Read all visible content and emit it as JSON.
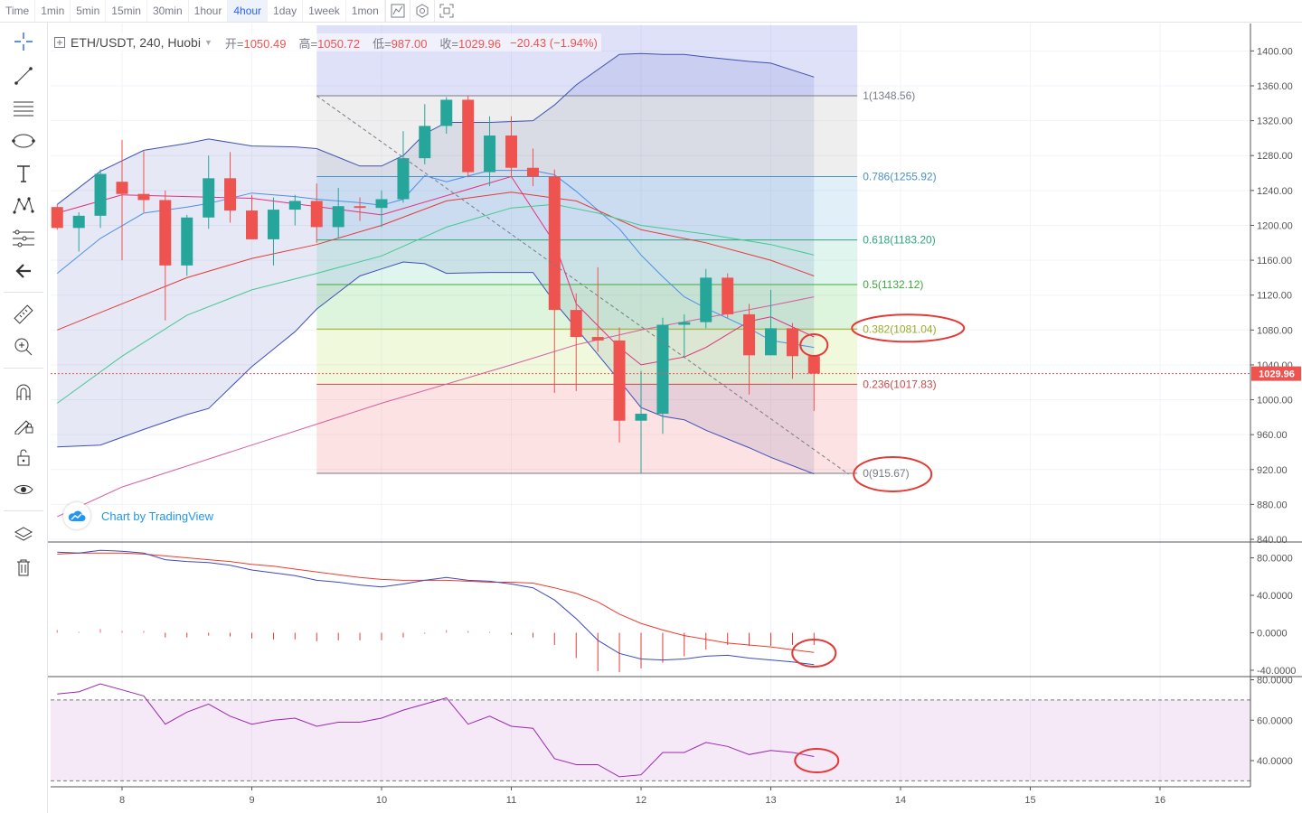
{
  "toolbar": {
    "timeframes": [
      "Time",
      "1min",
      "5min",
      "15min",
      "30min",
      "1hour",
      "4hour",
      "1day",
      "1week",
      "1mon"
    ],
    "active": "4hour",
    "icons": [
      "indicator-icon",
      "settings-icon",
      "screenshot-icon"
    ]
  },
  "left_tools": [
    "crosshair-icon",
    "trend-line-icon",
    "horizontal-lines-icon",
    "ellipse-icon",
    "text-icon",
    "pattern-icon",
    "fib-tools-icon",
    "back-arrow-icon",
    "ruler-icon",
    "zoom-in-icon",
    "magnet-icon",
    "lock-drawing-icon",
    "unlock-icon",
    "eye-icon",
    "layers-icon",
    "trash-icon"
  ],
  "legend": {
    "symbol": "ETH/USDT, 240, Huobi",
    "open_label": "开=",
    "open": "1050.49",
    "high_label": "高=",
    "high": "1050.72",
    "low_label": "低=",
    "low": "987.00",
    "close_label": "收=",
    "close": "1029.96",
    "change": "−20.43 (−1.94%)"
  },
  "watermark": "Chart by TradingView",
  "colors": {
    "up": "#26a69a",
    "down": "#ef5350",
    "bb_fill": "#3f51b5",
    "annotation": "#e53935"
  },
  "chart_data": {
    "type": "candlestick",
    "x_axis": {
      "ticks": [
        "8",
        "9",
        "10",
        "11",
        "12",
        "13",
        "14",
        "15",
        "16"
      ],
      "tick_positions": [
        8,
        9,
        10,
        11,
        12,
        13,
        14,
        15,
        16
      ]
    },
    "price_axis": {
      "ticks": [
        "840.00",
        "880.00",
        "920.00",
        "960.00",
        "1000.00",
        "1040.00",
        "1080.00",
        "1120.00",
        "1160.00",
        "1200.00",
        "1240.00",
        "1280.00",
        "1320.00",
        "1360.00",
        "1400.00"
      ],
      "range": [
        840,
        1420
      ]
    },
    "last_price": "1029.96",
    "candles": [
      {
        "t": 7.5,
        "o": 1221,
        "h": 1224,
        "l": 1195,
        "c": 1197
      },
      {
        "t": 7.667,
        "o": 1197,
        "h": 1215,
        "l": 1170,
        "c": 1211
      },
      {
        "t": 7.833,
        "o": 1211,
        "h": 1264,
        "l": 1197,
        "c": 1259
      },
      {
        "t": 8.0,
        "o": 1250,
        "h": 1298,
        "l": 1160,
        "c": 1236
      },
      {
        "t": 8.167,
        "o": 1236,
        "h": 1285,
        "l": 1215,
        "c": 1229
      },
      {
        "t": 8.333,
        "o": 1229,
        "h": 1240,
        "l": 1091,
        "c": 1154
      },
      {
        "t": 8.5,
        "o": 1154,
        "h": 1212,
        "l": 1142,
        "c": 1209
      },
      {
        "t": 8.667,
        "o": 1209,
        "h": 1280,
        "l": 1196,
        "c": 1254
      },
      {
        "t": 8.833,
        "o": 1254,
        "h": 1284,
        "l": 1203,
        "c": 1217
      },
      {
        "t": 9.0,
        "o": 1217,
        "h": 1235,
        "l": 1186,
        "c": 1184
      },
      {
        "t": 9.167,
        "o": 1184,
        "h": 1232,
        "l": 1154,
        "c": 1218
      },
      {
        "t": 9.333,
        "o": 1218,
        "h": 1235,
        "l": 1200,
        "c": 1228
      },
      {
        "t": 9.5,
        "o": 1228,
        "h": 1248,
        "l": 1180,
        "c": 1198
      },
      {
        "t": 9.667,
        "o": 1198,
        "h": 1243,
        "l": 1185,
        "c": 1222
      },
      {
        "t": 9.833,
        "o": 1222,
        "h": 1232,
        "l": 1205,
        "c": 1220
      },
      {
        "t": 10.0,
        "o": 1220,
        "h": 1240,
        "l": 1198,
        "c": 1230
      },
      {
        "t": 10.167,
        "o": 1230,
        "h": 1308,
        "l": 1226,
        "c": 1277
      },
      {
        "t": 10.333,
        "o": 1277,
        "h": 1339,
        "l": 1270,
        "c": 1314
      },
      {
        "t": 10.5,
        "o": 1314,
        "h": 1347,
        "l": 1305,
        "c": 1344
      },
      {
        "t": 10.667,
        "o": 1344,
        "h": 1349,
        "l": 1255,
        "c": 1261
      },
      {
        "t": 10.833,
        "o": 1261,
        "h": 1325,
        "l": 1245,
        "c": 1303
      },
      {
        "t": 11.0,
        "o": 1303,
        "h": 1325,
        "l": 1255,
        "c": 1266
      },
      {
        "t": 11.167,
        "o": 1266,
        "h": 1288,
        "l": 1245,
        "c": 1256
      },
      {
        "t": 11.333,
        "o": 1256,
        "h": 1264,
        "l": 1008,
        "c": 1103
      },
      {
        "t": 11.5,
        "o": 1103,
        "h": 1122,
        "l": 1010,
        "c": 1072
      },
      {
        "t": 11.667,
        "o": 1072,
        "h": 1152,
        "l": 1055,
        "c": 1068
      },
      {
        "t": 11.833,
        "o": 1068,
        "h": 1083,
        "l": 951,
        "c": 976
      },
      {
        "t": 12.0,
        "o": 976,
        "h": 1033,
        "l": 916,
        "c": 984
      },
      {
        "t": 12.167,
        "o": 984,
        "h": 1094,
        "l": 961,
        "c": 1086
      },
      {
        "t": 12.333,
        "o": 1086,
        "h": 1098,
        "l": 1049,
        "c": 1089
      },
      {
        "t": 12.5,
        "o": 1089,
        "h": 1150,
        "l": 1082,
        "c": 1140
      },
      {
        "t": 12.667,
        "o": 1140,
        "h": 1145,
        "l": 1094,
        "c": 1098
      },
      {
        "t": 12.833,
        "o": 1098,
        "h": 1110,
        "l": 1006,
        "c": 1051
      },
      {
        "t": 13.0,
        "o": 1051,
        "h": 1126,
        "l": 1051,
        "c": 1082
      },
      {
        "t": 13.167,
        "o": 1082,
        "h": 1088,
        "l": 1024,
        "c": 1050
      },
      {
        "t": 13.333,
        "o": 1050,
        "h": 1051,
        "l": 987,
        "c": 1030
      }
    ],
    "bollinger": {
      "t": [
        7.5,
        7.833,
        8.167,
        8.5,
        8.667,
        9.0,
        9.333,
        9.5,
        9.833,
        10.0,
        10.167,
        10.333,
        10.5,
        10.833,
        11.167,
        11.333,
        11.5,
        11.833,
        12.0,
        12.167,
        12.333,
        12.5,
        12.833,
        13.0,
        13.333
      ],
      "upper": [
        1224,
        1262,
        1286,
        1294,
        1299,
        1291,
        1290,
        1288,
        1268,
        1268,
        1280,
        1305,
        1318,
        1318,
        1320,
        1338,
        1361,
        1396,
        1397,
        1396,
        1396,
        1393,
        1388,
        1386,
        1370
      ],
      "lower": [
        946,
        948,
        966,
        983,
        990,
        1038,
        1078,
        1104,
        1142,
        1150,
        1158,
        1156,
        1145,
        1146,
        1146,
        1112,
        1082,
        1022,
        991,
        981,
        977,
        965,
        945,
        934,
        915
      ],
      "middle": [
        1145,
        1185,
        1214,
        1221,
        1225,
        1237,
        1233,
        1230,
        1226,
        1223,
        1230,
        1257,
        1250,
        1263,
        1263,
        1258,
        1239,
        1196,
        1166,
        1141,
        1118,
        1105,
        1082,
        1068,
        1060
      ]
    },
    "moving_averages": [
      {
        "color": "#e0317e",
        "t": [
          7.5,
          8.0,
          9.0,
          10.0,
          11.0,
          11.333,
          11.5,
          11.833,
          12.0,
          12.333,
          12.5,
          12.833,
          13.0,
          13.333
        ],
        "values": [
          1214,
          1235,
          1231,
          1212,
          1256,
          1180,
          1110,
          1060,
          1040,
          1049,
          1060,
          1090,
          1095,
          1072
        ]
      },
      {
        "color": "#e53935",
        "t": [
          7.5,
          8.0,
          8.5,
          9.0,
          9.5,
          10.0,
          10.5,
          11.0,
          11.5,
          12.0,
          12.5,
          13.0,
          13.333
        ],
        "values": [
          1080,
          1110,
          1140,
          1162,
          1178,
          1200,
          1228,
          1238,
          1228,
          1195,
          1180,
          1160,
          1142
        ]
      },
      {
        "color": "#43c98f",
        "t": [
          7.5,
          8.0,
          8.5,
          9.0,
          9.5,
          10.0,
          10.5,
          11.0,
          11.333,
          11.667,
          12.0,
          12.5,
          13.0,
          13.333
        ],
        "values": [
          996,
          1050,
          1097,
          1126,
          1145,
          1165,
          1198,
          1220,
          1224,
          1214,
          1200,
          1190,
          1178,
          1166
        ]
      },
      {
        "color": "#d65ca3",
        "t": [
          7.5,
          8.0,
          9.0,
          10.0,
          10.5,
          11.0,
          11.5,
          12.0,
          12.5,
          13.0,
          13.333
        ],
        "values": [
          866,
          900,
          948,
          996,
          1018,
          1040,
          1063,
          1080,
          1094,
          1108,
          1118
        ]
      }
    ],
    "fib_levels": [
      {
        "label": "1(1348.56)",
        "value": 1348.56,
        "color": "#787b86"
      },
      {
        "label": "0.786(1255.92)",
        "value": 1255.92,
        "color": "#4a90c8"
      },
      {
        "label": "0.618(1183.20)",
        "value": 1183.2,
        "color": "#2aa87a"
      },
      {
        "label": "0.5(1132.12)",
        "value": 1132.12,
        "color": "#3caa3c"
      },
      {
        "label": "0.382(1081.04)",
        "value": 1081.04,
        "color": "#9aab28"
      },
      {
        "label": "0.236(1017.83)",
        "value": 1017.83,
        "color": "#c94a4a"
      },
      {
        "label": "0(915.67)",
        "value": 915.67,
        "color": "#787b86"
      }
    ],
    "fib_range": {
      "t_start": 9.5,
      "t_end": 13.667
    },
    "macd": {
      "axis_ticks": [
        "80.0000",
        "40.0000",
        "0.0000",
        "-40.0000"
      ],
      "range": [
        -46,
        92
      ],
      "t": [
        7.5,
        7.667,
        7.833,
        8.0,
        8.167,
        8.333,
        8.5,
        8.667,
        8.833,
        9.0,
        9.167,
        9.333,
        9.5,
        9.667,
        9.833,
        10.0,
        10.167,
        10.333,
        10.5,
        10.667,
        10.833,
        11.0,
        11.167,
        11.333,
        11.5,
        11.667,
        11.833,
        12.0,
        12.167,
        12.333,
        12.5,
        12.667,
        12.833,
        13.0,
        13.167,
        13.333
      ],
      "macd": [
        86,
        85,
        88,
        87,
        85,
        78,
        76,
        75,
        72,
        67,
        64,
        61,
        56,
        54,
        51,
        49,
        52,
        56,
        59,
        56,
        55,
        52,
        48,
        35,
        15,
        -8,
        -22,
        -28,
        -29,
        -28,
        -25,
        -24,
        -27,
        -29,
        -31,
        -34
      ],
      "signal": [
        84,
        85,
        85,
        85,
        84,
        82,
        80,
        78,
        76,
        73,
        71,
        68,
        65,
        62,
        59,
        57,
        56,
        56,
        56,
        55,
        54,
        54,
        53,
        48,
        42,
        33,
        20,
        10,
        3,
        -3,
        -7,
        -11,
        -13,
        -15,
        -18,
        -21
      ],
      "histogram": [
        3,
        1,
        4,
        2,
        2,
        -5,
        -5,
        -3,
        -4,
        -6,
        -7,
        -7,
        -9,
        -8,
        -8,
        -8,
        -5,
        -1,
        3,
        2,
        1,
        -2,
        -5,
        -13,
        -27,
        -41,
        -42,
        -38,
        -32,
        -25,
        -18,
        -13,
        -14,
        -14,
        -13,
        -13
      ]
    },
    "rsi": {
      "axis_ticks": [
        "80.0000",
        "60.0000",
        "40.0000"
      ],
      "range": [
        28,
        82
      ],
      "bands": [
        70,
        30
      ],
      "t": [
        7.5,
        7.667,
        7.833,
        8.0,
        8.167,
        8.333,
        8.5,
        8.667,
        8.833,
        9.0,
        9.167,
        9.333,
        9.5,
        9.667,
        9.833,
        10.0,
        10.167,
        10.333,
        10.5,
        10.667,
        10.833,
        11.0,
        11.167,
        11.333,
        11.5,
        11.667,
        11.833,
        12.0,
        12.167,
        12.333,
        12.5,
        12.667,
        12.833,
        13.0,
        13.167,
        13.333
      ],
      "values": [
        73,
        74,
        78,
        75,
        72,
        58,
        64,
        68,
        62,
        58,
        60,
        61,
        57,
        59,
        59,
        61,
        65,
        68,
        71,
        58,
        62,
        57,
        56,
        41,
        38,
        38,
        32,
        33,
        44,
        44,
        49,
        47,
        43,
        45,
        44,
        42
      ]
    }
  }
}
